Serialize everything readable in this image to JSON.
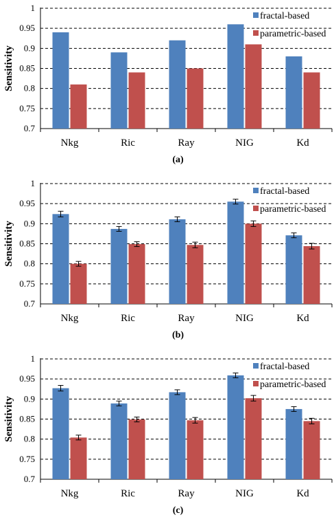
{
  "chart_data": [
    {
      "type": "bar",
      "caption": "(a)",
      "ylabel": "Sensitivity",
      "ylim": [
        0.7,
        1
      ],
      "yticks": [
        "0.7",
        "0.75",
        "0.8",
        "0.85",
        "0.9",
        "0.95",
        "1"
      ],
      "grid": true,
      "legend_position": "top-right",
      "categories": [
        "Nkg",
        "Ric",
        "Ray",
        "NIG",
        "Kd"
      ],
      "series": [
        {
          "name": "fractal-based",
          "color": "#4f81bd",
          "values": [
            0.94,
            0.89,
            0.92,
            0.96,
            0.88
          ]
        },
        {
          "name": "parametric-based",
          "color": "#c0504d",
          "values": [
            0.81,
            0.84,
            0.85,
            0.91,
            0.84
          ]
        }
      ]
    },
    {
      "type": "bar",
      "caption": "(b)",
      "ylabel": "Sensitivity",
      "ylim": [
        0.7,
        1
      ],
      "yticks": [
        "0.7",
        "0.75",
        "0.8",
        "0.85",
        "0.9",
        "0.95",
        "1"
      ],
      "grid": true,
      "legend_position": "top-right",
      "categories": [
        "Nkg",
        "Ric",
        "Ray",
        "NIG",
        "Kd"
      ],
      "series": [
        {
          "name": "fractal-based",
          "color": "#4f81bd",
          "values": [
            0.924,
            0.887,
            0.911,
            0.955,
            0.871
          ],
          "errors": [
            0.007,
            0.006,
            0.006,
            0.006,
            0.006
          ]
        },
        {
          "name": "parametric-based",
          "color": "#c0504d",
          "values": [
            0.8,
            0.849,
            0.847,
            0.9,
            0.844
          ],
          "errors": [
            0.006,
            0.006,
            0.007,
            0.007,
            0.007
          ]
        }
      ]
    },
    {
      "type": "bar",
      "caption": "(c)",
      "ylabel": "Sensitivity",
      "ylim": [
        0.7,
        1
      ],
      "yticks": [
        "0.7",
        "0.75",
        "0.8",
        "0.85",
        "0.9",
        "0.95",
        "1"
      ],
      "grid": true,
      "legend_position": "top-right",
      "categories": [
        "Nkg",
        "Ric",
        "Ray",
        "NIG",
        "Kd"
      ],
      "series": [
        {
          "name": "fractal-based",
          "color": "#4f81bd",
          "values": [
            0.927,
            0.889,
            0.917,
            0.959,
            0.875
          ],
          "errors": [
            0.007,
            0.006,
            0.006,
            0.006,
            0.006
          ]
        },
        {
          "name": "parametric-based",
          "color": "#c0504d",
          "values": [
            0.804,
            0.849,
            0.847,
            0.902,
            0.845
          ],
          "errors": [
            0.006,
            0.006,
            0.007,
            0.007,
            0.007
          ]
        }
      ]
    }
  ]
}
